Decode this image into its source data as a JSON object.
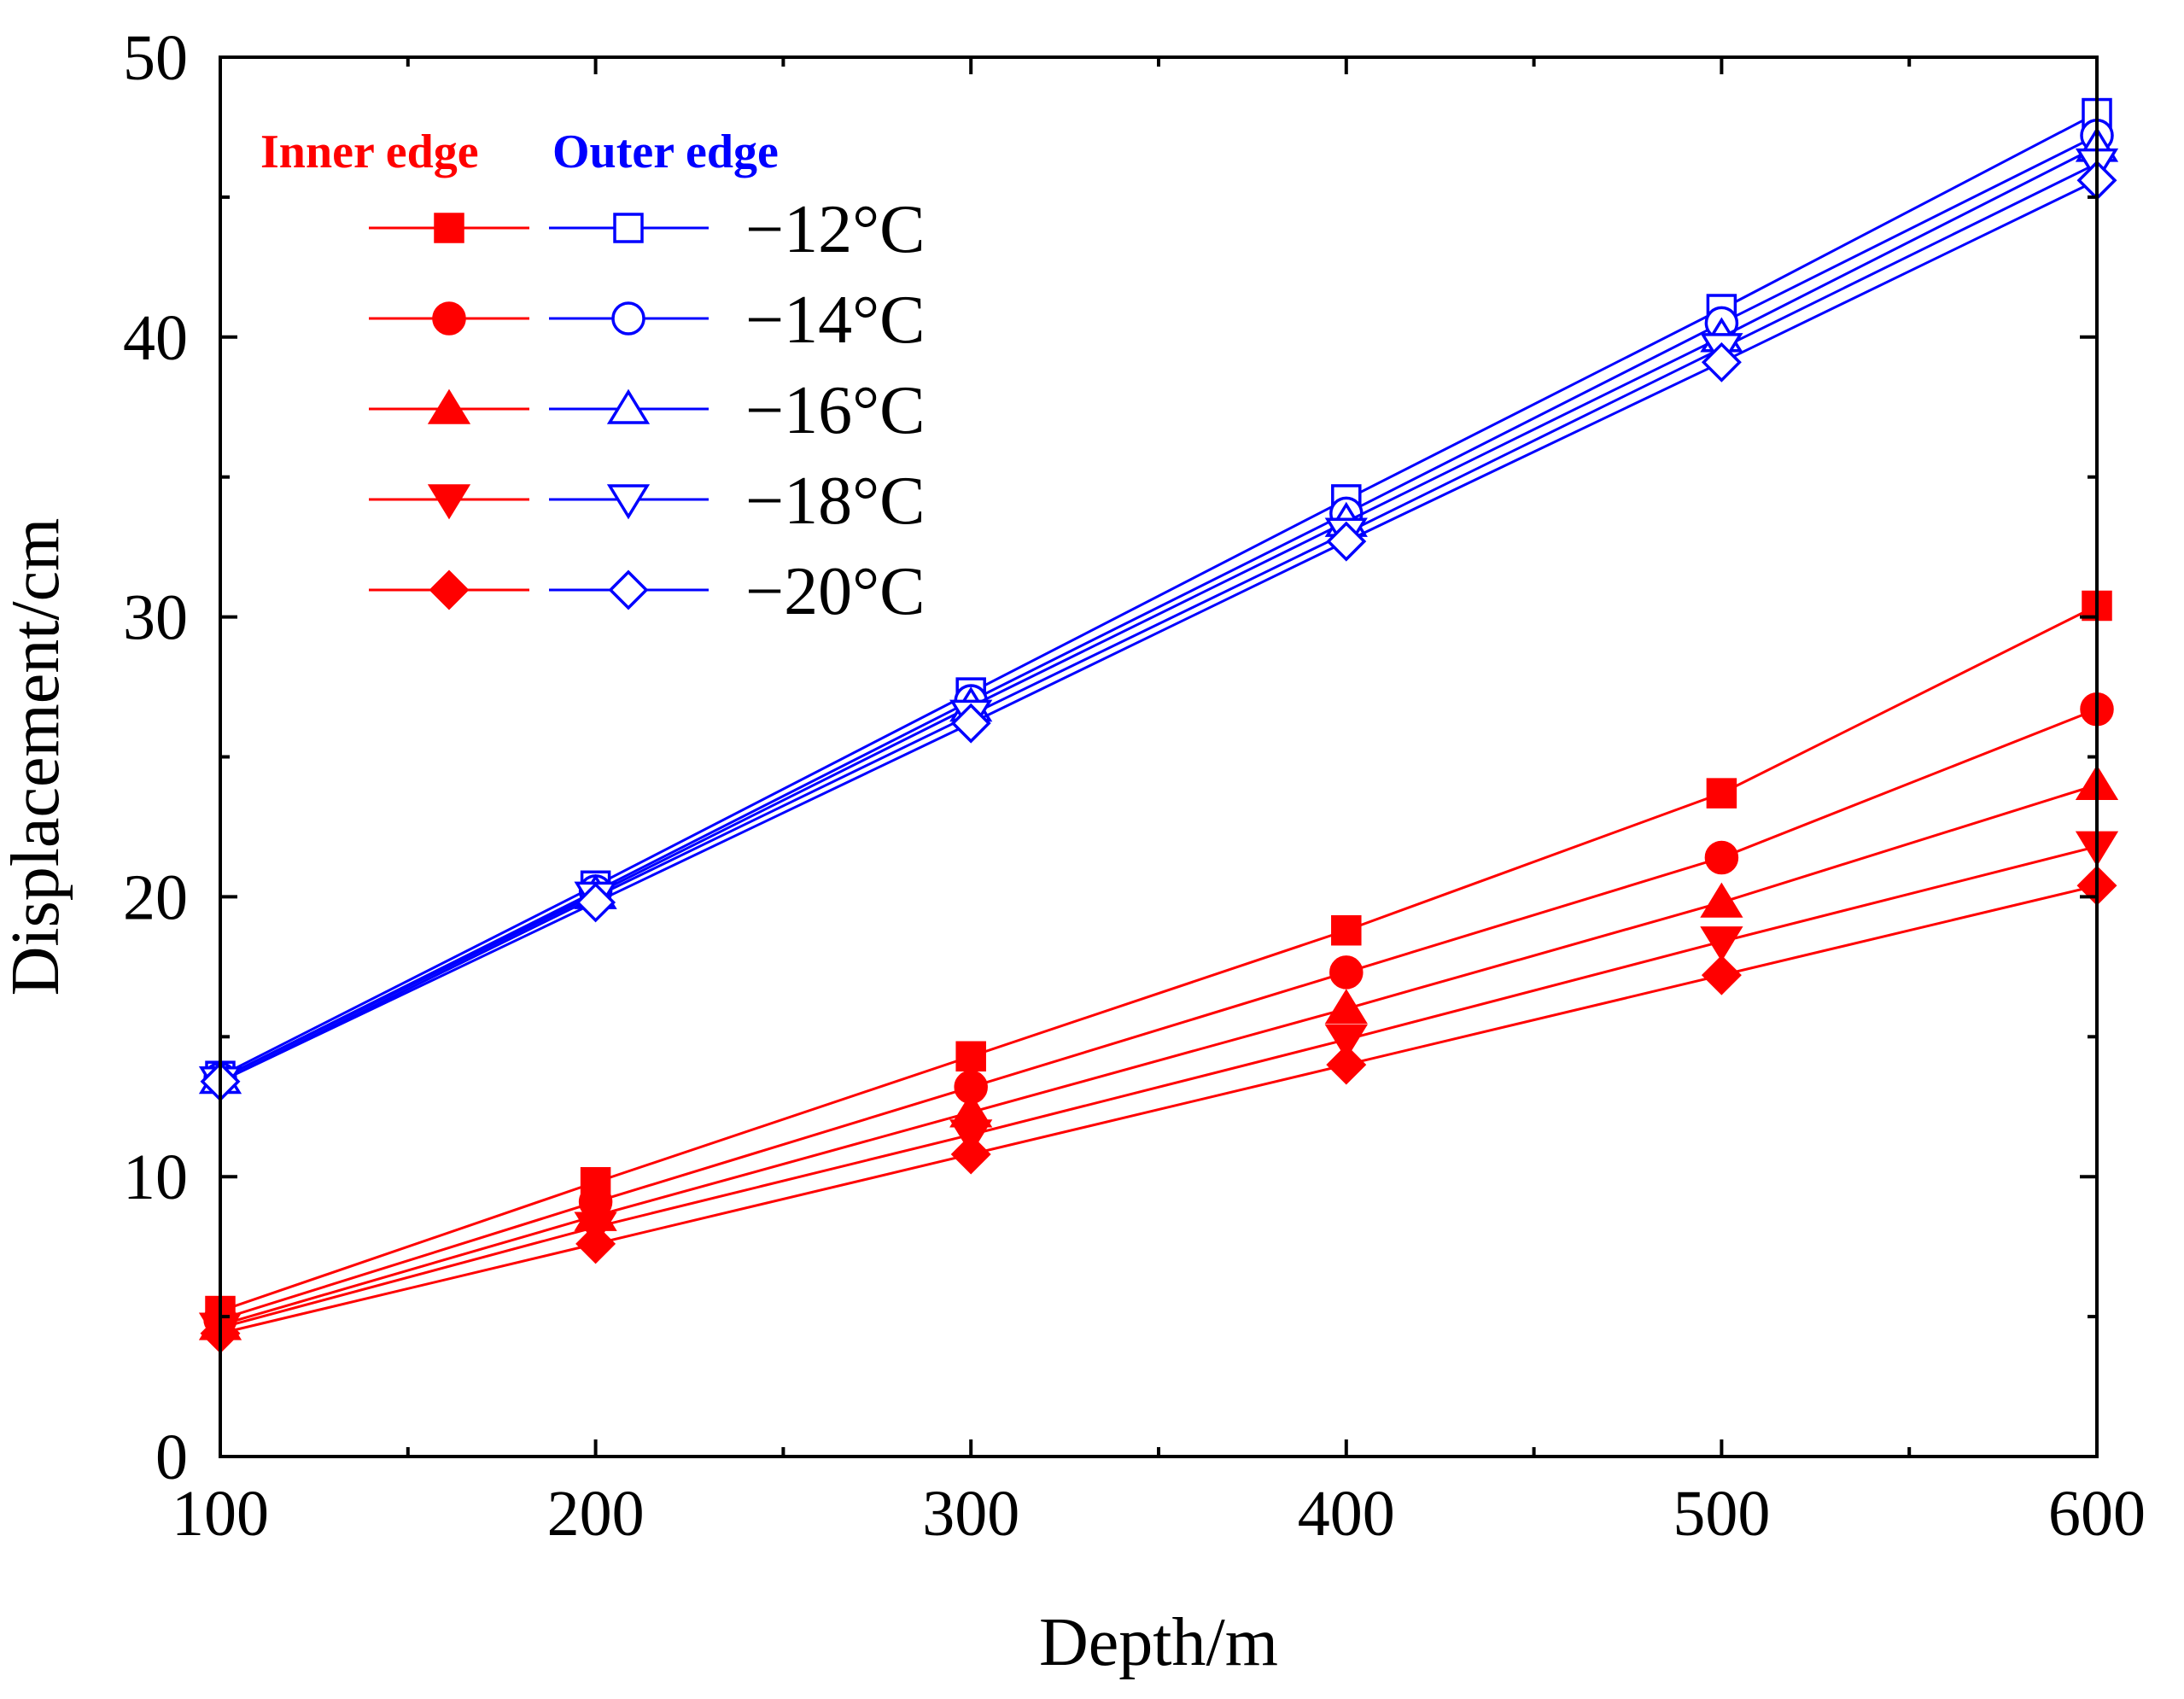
{
  "chart_data": {
    "type": "line",
    "title": "",
    "xlabel": "Depth/m",
    "ylabel": "Displacement/cm",
    "xlim": [
      100,
      600
    ],
    "ylim": [
      0,
      50
    ],
    "x_ticks": [
      100,
      200,
      300,
      400,
      500,
      600
    ],
    "y_ticks": [
      0,
      10,
      20,
      30,
      40,
      50
    ],
    "x": [
      100,
      200,
      300,
      400,
      500,
      600
    ],
    "legend": {
      "placement": "top-left",
      "headers": {
        "inner": "Inner edge",
        "outer": "Outer edge"
      },
      "entries": [
        "−12°C",
        "−14°C",
        "−16°C",
        "−18°C",
        "−20°C"
      ]
    },
    "colors": {
      "inner": "#ff0000",
      "outer": "#0000ff"
    },
    "series": [
      {
        "name": "Inner edge −12°C",
        "group": "inner",
        "marker": "square",
        "values": [
          5.2,
          9.8,
          14.3,
          18.8,
          23.7,
          30.4
        ]
      },
      {
        "name": "Inner edge −14°C",
        "group": "inner",
        "marker": "circle",
        "values": [
          4.9,
          9.1,
          13.2,
          17.3,
          21.4,
          26.7
        ]
      },
      {
        "name": "Inner edge −16°C",
        "group": "inner",
        "marker": "triangle-up",
        "values": [
          4.7,
          8.6,
          12.3,
          16.0,
          19.8,
          24.0
        ]
      },
      {
        "name": "Inner edge −18°C",
        "group": "inner",
        "marker": "triangle-down",
        "values": [
          4.6,
          8.2,
          11.5,
          14.9,
          18.4,
          21.8
        ]
      },
      {
        "name": "Inner edge −20°C",
        "group": "inner",
        "marker": "diamond",
        "values": [
          4.4,
          7.6,
          10.8,
          14.0,
          17.2,
          20.4
        ]
      },
      {
        "name": "Outer edge −12°C",
        "group": "outer",
        "marker": "square",
        "values": [
          13.6,
          20.4,
          27.3,
          34.2,
          41.0,
          48.0
        ]
      },
      {
        "name": "Outer edge −14°C",
        "group": "outer",
        "marker": "circle",
        "values": [
          13.5,
          20.2,
          27.0,
          33.7,
          40.5,
          47.2
        ]
      },
      {
        "name": "Outer edge −16°C",
        "group": "outer",
        "marker": "triangle-up",
        "values": [
          13.5,
          20.1,
          26.8,
          33.4,
          40.0,
          46.8
        ]
      },
      {
        "name": "Outer edge −18°C",
        "group": "outer",
        "marker": "triangle-down",
        "values": [
          13.4,
          20.0,
          26.5,
          33.0,
          39.6,
          46.2
        ]
      },
      {
        "name": "Outer edge −20°C",
        "group": "outer",
        "marker": "diamond",
        "values": [
          13.4,
          19.8,
          26.2,
          32.7,
          39.1,
          45.6
        ]
      }
    ]
  }
}
